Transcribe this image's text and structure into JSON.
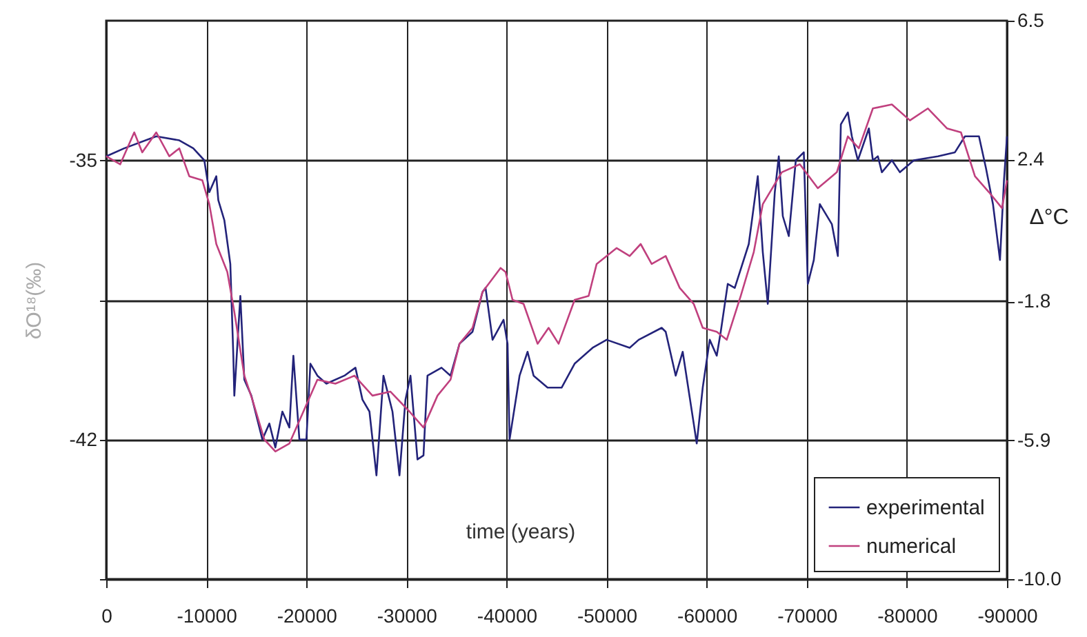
{
  "chart_data": {
    "type": "line",
    "xlabel": "time (years)",
    "ylabel": "δO¹⁸(‰)",
    "y2label": "Δ°C",
    "xlim": [
      0,
      -90000
    ],
    "xticks": [
      0,
      -10000,
      -20000,
      -30000,
      -40000,
      -50000,
      -60000,
      -70000,
      -80000,
      -90000
    ],
    "ylim": [
      -45.5,
      -31.5
    ],
    "yticks": [
      -35,
      {
        "value": -38.5,
        "label": null
      },
      -42,
      {
        "value": -45.5,
        "label": null
      }
    ],
    "y2lim": [
      -10.0,
      6.5
    ],
    "y2ticks": [
      6.5,
      2.4,
      -1.8,
      -5.9,
      {
        "value": -10.0,
        "label": "-10.0"
      }
    ],
    "grid": true,
    "legend": "bottom right",
    "line_style": "solid",
    "marker": "none",
    "series": [
      {
        "name": "experimental",
        "color": "#23237a",
        "x": [
          0,
          -1800,
          -5000,
          -7300,
          -8700,
          -9800,
          -10300,
          -11000,
          -11200,
          -11800,
          -12400,
          -12700,
          -12800,
          -13400,
          -13800,
          -14500,
          -15600,
          -16300,
          -16900,
          -17600,
          -18300,
          -18700,
          -19300,
          -20000,
          -20400,
          -21100,
          -22000,
          -23800,
          -24900,
          -25600,
          -26300,
          -27000,
          -27700,
          -28600,
          -29300,
          -29900,
          -30400,
          -31100,
          -31700,
          -32100,
          -33500,
          -34400,
          -35300,
          -36600,
          -37600,
          -37900,
          -38600,
          -39700,
          -40100,
          -40300,
          -41300,
          -42100,
          -42700,
          -44100,
          -45500,
          -46800,
          -48600,
          -50000,
          -52300,
          -53200,
          -55500,
          -55900,
          -56900,
          -57600,
          -58700,
          -59000,
          -59600,
          -60300,
          -61000,
          -61400,
          -62100,
          -62800,
          -64200,
          -65100,
          -65600,
          -66100,
          -66800,
          -67200,
          -67600,
          -68200,
          -68900,
          -69700,
          -70100,
          -70700,
          -71300,
          -72500,
          -73100,
          -73400,
          -74100,
          -74500,
          -75100,
          -76200,
          -76600,
          -77100,
          -77500,
          -78500,
          -79300,
          -80700,
          -83100,
          -84800,
          -85800,
          -87200,
          -87900,
          -88600,
          -89300,
          -89700,
          -90000
        ],
        "values": [
          -34.9,
          -34.7,
          -34.4,
          -34.5,
          -34.7,
          -35.0,
          -35.8,
          -35.4,
          -36.0,
          -36.5,
          -37.6,
          -39.9,
          -40.9,
          -38.4,
          -40.5,
          -40.9,
          -42.0,
          -41.6,
          -42.2,
          -41.3,
          -41.7,
          -39.9,
          -42.0,
          -42.0,
          -40.1,
          -40.4,
          -40.6,
          -40.4,
          -40.2,
          -41.0,
          -41.3,
          -42.9,
          -40.4,
          -41.3,
          -42.9,
          -41.0,
          -40.4,
          -42.5,
          -42.4,
          -40.4,
          -40.2,
          -40.4,
          -39.6,
          -39.3,
          -38.3,
          -38.2,
          -39.5,
          -39.0,
          -39.6,
          -42.0,
          -40.4,
          -39.8,
          -40.4,
          -40.7,
          -40.7,
          -40.1,
          -39.7,
          -39.5,
          -39.7,
          -39.5,
          -39.2,
          -39.3,
          -40.4,
          -39.8,
          -41.6,
          -42.1,
          -40.7,
          -39.5,
          -39.9,
          -39.3,
          -38.1,
          -38.2,
          -37.1,
          -35.4,
          -37.3,
          -38.6,
          -35.8,
          -34.9,
          -36.4,
          -36.9,
          -35.0,
          -34.8,
          -38.1,
          -37.5,
          -36.1,
          -36.6,
          -37.4,
          -34.1,
          -33.8,
          -34.4,
          -35.0,
          -34.2,
          -35.0,
          -34.9,
          -35.3,
          -35.0,
          -35.3,
          -35.0,
          -34.9,
          -34.8,
          -34.4,
          -34.4,
          -35.2,
          -36.1,
          -37.5,
          -35.5,
          -34.4
        ]
      },
      {
        "name": "numerical",
        "color": "#c0407e",
        "x": [
          0,
          -1400,
          -2800,
          -3600,
          -5000,
          -6300,
          -7300,
          -8300,
          -9600,
          -10300,
          -11000,
          -12100,
          -12800,
          -13800,
          -14600,
          -15800,
          -16900,
          -18300,
          -19700,
          -21100,
          -22900,
          -24800,
          -26600,
          -28400,
          -30300,
          -31700,
          -33100,
          -34400,
          -35300,
          -36600,
          -37600,
          -39400,
          -39900,
          -40600,
          -41700,
          -43100,
          -44200,
          -45200,
          -46800,
          -48200,
          -49000,
          -51000,
          -52300,
          -53400,
          -54500,
          -55900,
          -57300,
          -58700,
          -59600,
          -61000,
          -62000,
          -63400,
          -64700,
          -65600,
          -67500,
          -69300,
          -71100,
          -73000,
          -74100,
          -75200,
          -76600,
          -78500,
          -80300,
          -82100,
          -84000,
          -85400,
          -86800,
          -88200,
          -89500,
          -90000
        ],
        "values": [
          -34.9,
          -35.1,
          -34.3,
          -34.8,
          -34.3,
          -34.9,
          -34.7,
          -35.4,
          -35.5,
          -36.1,
          -37.1,
          -37.8,
          -38.8,
          -40.4,
          -41.0,
          -42.0,
          -42.3,
          -42.1,
          -41.3,
          -40.5,
          -40.6,
          -40.4,
          -40.9,
          -40.8,
          -41.3,
          -41.7,
          -40.9,
          -40.5,
          -39.6,
          -39.2,
          -38.3,
          -37.7,
          -37.8,
          -38.5,
          -38.6,
          -39.6,
          -39.2,
          -39.6,
          -38.5,
          -38.4,
          -37.6,
          -37.2,
          -37.4,
          -37.1,
          -37.6,
          -37.4,
          -38.2,
          -38.6,
          -39.2,
          -39.3,
          -39.5,
          -38.4,
          -37.3,
          -36.1,
          -35.3,
          -35.1,
          -35.7,
          -35.3,
          -34.4,
          -34.7,
          -33.7,
          -33.6,
          -34.0,
          -33.7,
          -34.2,
          -34.3,
          -35.4,
          -35.8,
          -36.2,
          -35.5
        ]
      }
    ]
  }
}
